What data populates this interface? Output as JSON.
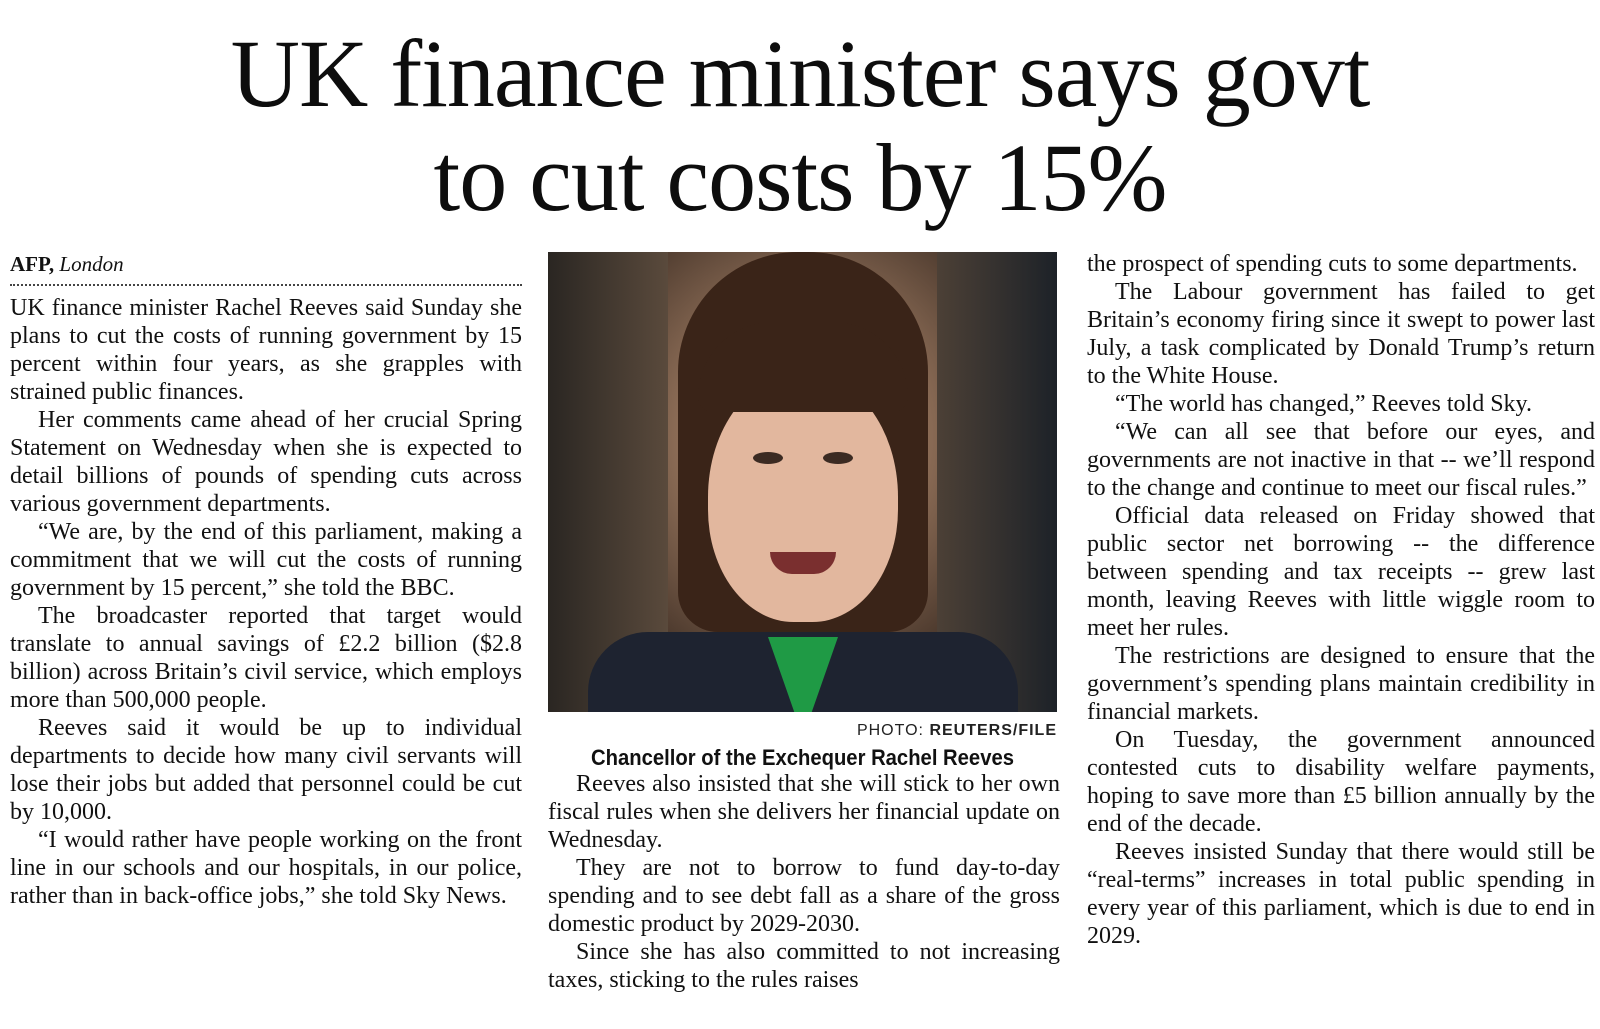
{
  "headline": {
    "line1": "UK finance minister says govt",
    "line2": "to cut costs by 15%"
  },
  "byline": {
    "agency": "AFP,",
    "place": "London"
  },
  "photo": {
    "credit_prefix": "PHOTO: ",
    "credit_source": "REUTERS/FILE",
    "caption": "Chancellor of the Exchequer Rachel Reeves"
  },
  "column1": [
    "UK finance minister Rachel Reeves said Sunday she plans to cut the costs of running government by 15 percent within four years, as she grapples with strained public finances.",
    "Her comments came ahead of her crucial Spring Statement on Wednesday when she is expected to detail billions of pounds of spending cuts across various government departments.",
    "“We are, by the end of this parliament, making a commitment that we will cut the costs of running government by 15 percent,” she told the BBC.",
    "The broadcaster reported that target would translate to annual savings of £2.2 billion ($2.8 billion) across Britain’s civil service, which employs more than 500,000 people.",
    "Reeves said it would be up to individual departments to decide how many civil servants will lose their jobs but added that personnel could be cut by 10,000.",
    "“I would rather have people working on the front line in our schools and our hospitals, in our police, rather than in back-office jobs,” she told Sky News."
  ],
  "column2": [
    "Reeves also insisted that she will stick to her own fiscal rules when she delivers her financial update on Wednesday.",
    "They are not to borrow to fund day-to-day spending and to see debt fall as a share of the gross domestic product by 2029-2030.",
    "Since she has also committed to not increasing taxes, sticking to the rules raises"
  ],
  "column3": [
    "the prospect of spending cuts to some departments.",
    "The Labour government has failed to get Britain’s economy firing since it swept to power last July, a task complicated by Donald Trump’s return to the White House.",
    "“The world has changed,” Reeves told Sky.",
    "“We can all see that before our eyes, and governments are not inactive in that -- we’ll respond to the change and continue to meet our fiscal rules.”",
    "Official data released on Friday showed that public sector net borrowing -- the difference between spending and tax receipts -- grew last month, leaving Reeves with little wiggle room to meet her rules.",
    "The restrictions are designed to ensure that the government’s spending plans maintain credibility in financial markets.",
    "On Tuesday, the government announced contested cuts to disability welfare payments, hoping to save more than £5 billion annually by the end of the decade.",
    "Reeves insisted Sunday that there would still be “real-terms” increases in total public spending in every year of this parliament, which is due to end in 2029."
  ]
}
